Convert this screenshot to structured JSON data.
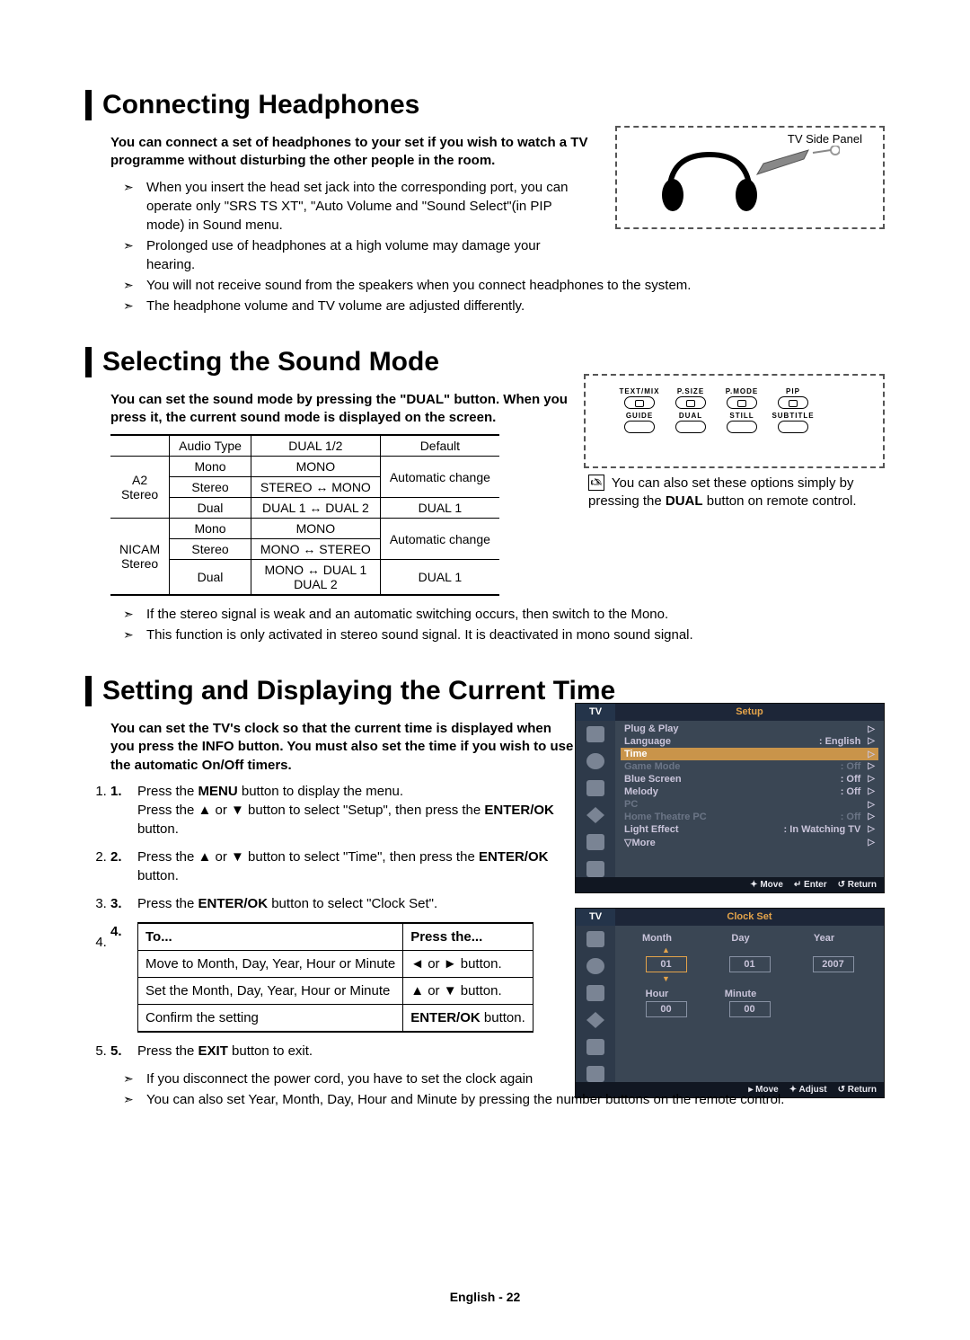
{
  "page_footer": "English - 22",
  "section1": {
    "title": "Connecting Headphones",
    "intro": "You can connect a set of headphones to your set if you wish to watch a TV programme without disturbing the other people in the room.",
    "side_label": "TV Side Panel",
    "bullets": [
      "When you insert the head set jack into the corresponding port, you can operate only \"SRS TS XT\", \"Auto Volume  and \"Sound Select\"(in PIP mode)  in Sound menu.",
      "Prolonged use of headphones at a high volume may damage your hearing.",
      "You will not receive sound from the speakers when you connect headphones to the system.",
      "The headphone volume and TV volume  are adjusted differently."
    ]
  },
  "section2": {
    "title": "Selecting the Sound Mode",
    "intro": "You can set the sound mode by pressing the \"DUAL\" button. When you press it, the current sound mode is displayed on the screen.",
    "table": {
      "headers": [
        "",
        "Audio Type",
        "DUAL 1/2",
        "Default"
      ],
      "groups": [
        {
          "label": "A2\nStereo",
          "rows": [
            [
              "Mono",
              "MONO",
              "Automatic change"
            ],
            [
              "Stereo",
              "STEREO ↔ MONO",
              ""
            ],
            [
              "Dual",
              "DUAL 1 ↔ DUAL 2",
              "DUAL 1"
            ]
          ]
        },
        {
          "label": "NICAM\nStereo",
          "rows": [
            [
              "Mono",
              "MONO",
              "Automatic change"
            ],
            [
              "Stereo",
              "MONO ↔ STEREO",
              ""
            ],
            [
              "Dual",
              "MONO ↔ DUAL 1\nDUAL 2",
              "DUAL 1"
            ]
          ]
        }
      ]
    },
    "remote_labels": {
      "r1": [
        "TEXT/MIX",
        "P.SIZE",
        "P.MODE",
        "PIP"
      ],
      "r2": [
        "GUIDE",
        "DUAL",
        "STILL",
        "SUBTITLE"
      ]
    },
    "note": "You can also set these options simply by pressing the ",
    "note_bold": "DUAL",
    "note2": " button on remote control.",
    "bullets": [
      "If the stereo signal is weak and an automatic switching occurs, then switch to the Mono.",
      "This function is only activated in stereo sound signal. It is deactivated in mono sound signal."
    ]
  },
  "section3": {
    "title": "Setting and Displaying the Current Time",
    "intro": "You can set the TV's clock so that the current time is displayed when you press the INFO button. You must also set the time if you wish to use the automatic On/Off timers.",
    "steps": {
      "s1a": "Press the ",
      "s1b": "MENU",
      "s1c": " button to display the menu.\nPress the ▲ or ▼ button to select \"Setup\", then press the ",
      "s1d": "ENTER/OK",
      "s1e": " button.",
      "s2a": "Press the ▲ or ▼ button to select \"Time\", then press the ",
      "s2b": "ENTER/OK",
      "s2c": " button.",
      "s3a": "Press the ",
      "s3b": "ENTER/OK",
      "s3c": " button to select \"Clock Set\".",
      "s5a": "Press the ",
      "s5b": "EXIT",
      "s5c": " button to exit."
    },
    "action_table": {
      "h1": "To...",
      "h2": "Press the...",
      "rows": [
        [
          "Move to Month, Day, Year, Hour or Minute",
          "◄ or ► button."
        ],
        [
          "Set the Month, Day, Year, Hour or Minute",
          "▲ or ▼ button."
        ],
        [
          "Confirm the setting",
          "ENTER/OK button."
        ]
      ]
    },
    "bullets": [
      "If you disconnect the power cord, you have to set the clock again",
      "You can also set Year, Month, Day, Hour and Minute by pressing the number buttons on the remote control."
    ],
    "osd_setup": {
      "hdr_left": "TV",
      "hdr_right": "Setup",
      "items": [
        {
          "l": "Plug & Play",
          "r": "",
          "cls": ""
        },
        {
          "l": "Language",
          "r": ": English",
          "cls": ""
        },
        {
          "l": "Time",
          "r": "",
          "cls": "sel"
        },
        {
          "l": "Game Mode",
          "r": ": Off",
          "cls": "dim"
        },
        {
          "l": "Blue Screen",
          "r": ": Off",
          "cls": ""
        },
        {
          "l": "Melody",
          "r": ": Off",
          "cls": ""
        },
        {
          "l": "PC",
          "r": "",
          "cls": "dim"
        },
        {
          "l": "Home Theatre PC",
          "r": ": Off",
          "cls": "dim"
        },
        {
          "l": "Light Effect",
          "r": ": In Watching TV",
          "cls": ""
        },
        {
          "l": "▽More",
          "r": "",
          "cls": ""
        }
      ],
      "footer": [
        "✦ Move",
        "↵ Enter",
        "↺ Return"
      ]
    },
    "osd_clock": {
      "hdr_left": "TV",
      "hdr_right": "Clock Set",
      "labels1": [
        "Month",
        "Day",
        "Year"
      ],
      "values1": [
        "01",
        "01",
        "2007"
      ],
      "labels2": [
        "Hour",
        "Minute"
      ],
      "values2": [
        "00",
        "00"
      ],
      "footer": [
        "▸ Move",
        "✦ Adjust",
        "↺ Return"
      ]
    }
  }
}
